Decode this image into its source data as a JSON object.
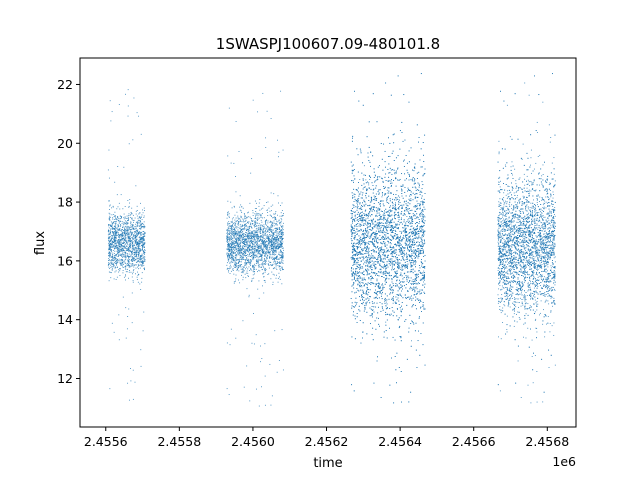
{
  "chart_data": {
    "type": "scatter",
    "title": "1SWASPJ100607.09-480101.8",
    "xlabel": "time",
    "ylabel": "flux",
    "x_offset_label": "1e6",
    "x_scale_factor": 1000000,
    "xlim": [
      2455530,
      2456878
    ],
    "ylim": [
      10.35,
      22.9
    ],
    "x_ticks": [
      2455600,
      2455800,
      2456000,
      2456200,
      2456400,
      2456600,
      2456800
    ],
    "x_tick_labels": [
      "2.4556",
      "2.4558",
      "2.4560",
      "2.4562",
      "2.4564",
      "2.4566",
      "2.4568"
    ],
    "y_ticks": [
      12,
      14,
      16,
      18,
      20,
      22
    ],
    "y_tick_labels": [
      "12",
      "14",
      "16",
      "18",
      "20",
      "22"
    ],
    "grid": false,
    "legend": "none",
    "marker_color": "#1f77b4",
    "clusters": [
      {
        "x_start": 2455607,
        "x_end": 2455707,
        "y_center": 16.6,
        "spread": 0.5,
        "outlier_range": [
          11.1,
          22.0
        ],
        "points": 1500
      },
      {
        "x_start": 2455929,
        "x_end": 2456083,
        "y_center": 16.6,
        "spread": 0.5,
        "outlier_range": [
          10.9,
          21.8
        ],
        "points": 2200
      },
      {
        "x_start": 2456267,
        "x_end": 2456468,
        "y_center": 16.6,
        "spread": 1.25,
        "outlier_range": [
          11.0,
          22.4
        ],
        "points": 5200
      },
      {
        "x_start": 2456666,
        "x_end": 2456822,
        "y_center": 16.5,
        "spread": 1.1,
        "outlier_range": [
          11.0,
          22.4
        ],
        "points": 3800
      }
    ]
  }
}
